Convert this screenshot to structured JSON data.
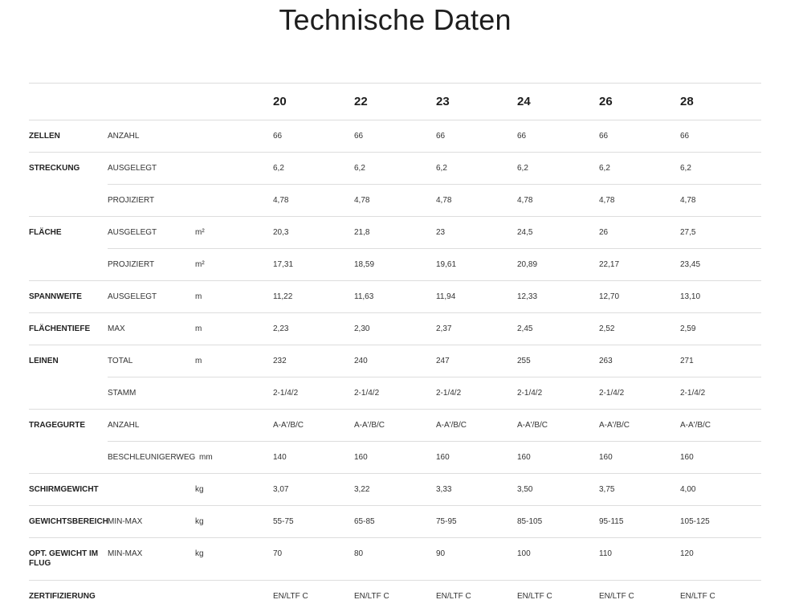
{
  "title": "Technische Daten",
  "sizes": [
    "20",
    "22",
    "23",
    "24",
    "26",
    "28"
  ],
  "rows": [
    {
      "label": "ZELLEN",
      "sub": "ANZAHL",
      "unit": "",
      "values": [
        "66",
        "66",
        "66",
        "66",
        "66",
        "66"
      ]
    },
    {
      "label": "STRECKUNG",
      "sub": "AUSGELEGT",
      "unit": "",
      "values": [
        "6,2",
        "6,2",
        "6,2",
        "6,2",
        "6,2",
        "6,2"
      ]
    },
    {
      "label": "",
      "sub": "PROJIZIERT",
      "unit": "",
      "values": [
        "4,78",
        "4,78",
        "4,78",
        "4,78",
        "4,78",
        "4,78"
      ]
    },
    {
      "label": "FLÄCHE",
      "sub": "AUSGELEGT",
      "unit": "m²",
      "values": [
        "20,3",
        "21,8",
        "23",
        "24,5",
        "26",
        "27,5"
      ]
    },
    {
      "label": "",
      "sub": "PROJIZIERT",
      "unit": "m²",
      "values": [
        "17,31",
        "18,59",
        "19,61",
        "20,89",
        "22,17",
        "23,45"
      ]
    },
    {
      "label": "SPANNWEITE",
      "sub": "AUSGELEGT",
      "unit": "m",
      "values": [
        "11,22",
        "11,63",
        "11,94",
        "12,33",
        "12,70",
        "13,10"
      ]
    },
    {
      "label": "FLÄCHENTIEFE",
      "sub": "MAX",
      "unit": "m",
      "values": [
        "2,23",
        "2,30",
        "2,37",
        "2,45",
        "2,52",
        "2,59"
      ]
    },
    {
      "label": "LEINEN",
      "sub": "TOTAL",
      "unit": "m",
      "values": [
        "232",
        "240",
        "247",
        "255",
        "263",
        "271"
      ]
    },
    {
      "label": "",
      "sub": "STAMM",
      "unit": "",
      "values": [
        "2-1/4/2",
        "2-1/4/2",
        "2-1/4/2",
        "2-1/4/2",
        "2-1/4/2",
        "2-1/4/2"
      ]
    },
    {
      "label": "TRAGEGURTE",
      "sub": "ANZAHL",
      "unit": "",
      "values": [
        "A-A'/B/C",
        "A-A'/B/C",
        "A-A'/B/C",
        "A-A'/B/C",
        "A-A'/B/C",
        "A-A'/B/C"
      ]
    },
    {
      "label": "",
      "sub": "BESCHLEUNIGERWEG",
      "unit": "mm",
      "values": [
        "140",
        "160",
        "160",
        "160",
        "160",
        "160"
      ]
    },
    {
      "label": "SCHIRMGEWICHT",
      "sub": "",
      "unit": "kg",
      "values": [
        "3,07",
        "3,22",
        "3,33",
        "3,50",
        "3,75",
        "4,00"
      ]
    },
    {
      "label": "GEWICHTSBEREICH",
      "sub": "MIN-MAX",
      "unit": "kg",
      "values": [
        "55-75",
        "65-85",
        "75-95",
        "85-105",
        "95-115",
        "105-125"
      ]
    },
    {
      "label": "OPT. GEWICHT IM FLUG",
      "sub": "MIN-MAX",
      "unit": "kg",
      "values": [
        "70",
        "80",
        "90",
        "100",
        "110",
        "120"
      ]
    },
    {
      "label": "ZERTIFIZIERUNG",
      "sub": "",
      "unit": "",
      "values": [
        "EN/LTF C",
        "EN/LTF C",
        "EN/LTF C",
        "EN/LTF C",
        "EN/LTF C",
        "EN/LTF C"
      ]
    }
  ]
}
